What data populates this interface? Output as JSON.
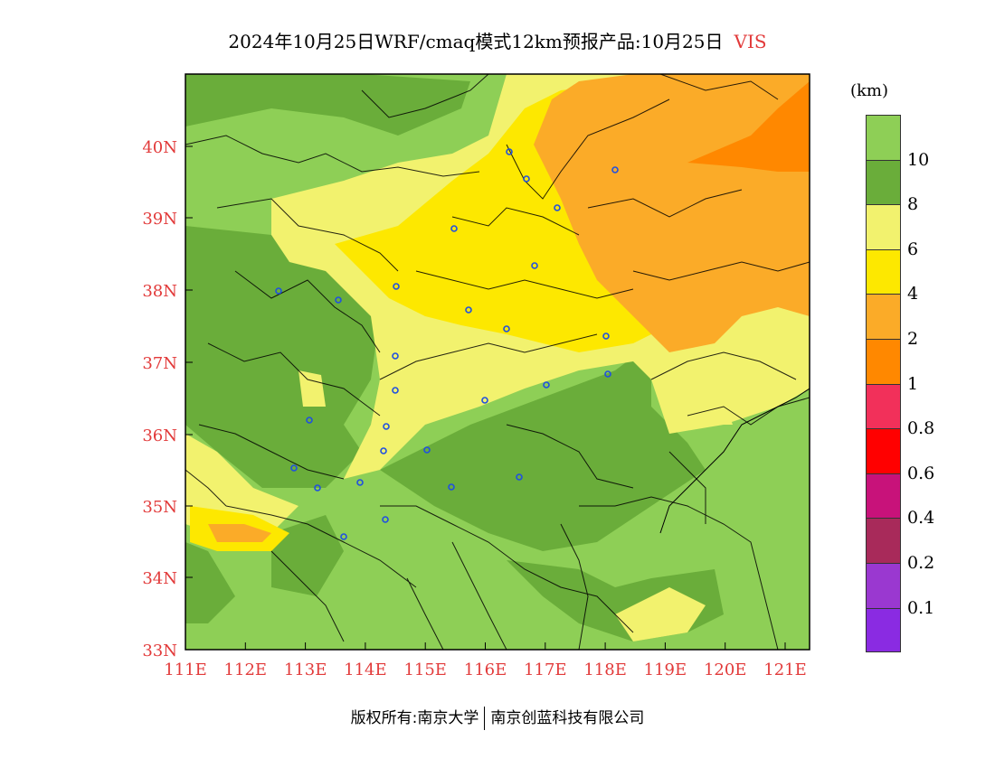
{
  "title": {
    "text": "2024年10月25日WRF/cmaq模式12km预报产品:10月25日",
    "variable": "VIS"
  },
  "legend": {
    "unit": "(km)",
    "bins": [
      {
        "label": "10",
        "color": "#8ecf56"
      },
      {
        "label": "8",
        "color": "#6aad3a"
      },
      {
        "label": "6",
        "color": "#f2f26e"
      },
      {
        "label": "4",
        "color": "#fde800"
      },
      {
        "label": "2",
        "color": "#fbab28"
      },
      {
        "label": "1",
        "color": "#ff8800"
      },
      {
        "label": "0.8",
        "color": "#f2305a"
      },
      {
        "label": "0.6",
        "color": "#ff0000"
      },
      {
        "label": "0.4",
        "color": "#c8127a"
      },
      {
        "label": "0.2",
        "color": "#a82a5a"
      },
      {
        "label": "0.1",
        "color": "#9a38d0"
      },
      {
        "label": "",
        "color": "#8a2be2"
      }
    ]
  },
  "axes": {
    "x_ticks": [
      "111E",
      "112E",
      "113E",
      "114E",
      "115E",
      "116E",
      "117E",
      "118E",
      "119E",
      "120E",
      "121E"
    ],
    "y_ticks": [
      "40N",
      "39N",
      "38N",
      "37N",
      "36N",
      "35N",
      "34N",
      "33N"
    ]
  },
  "cities": 28,
  "footer": {
    "left": "版权所有:南京大学",
    "right": "南京创蓝科技有限公司"
  }
}
